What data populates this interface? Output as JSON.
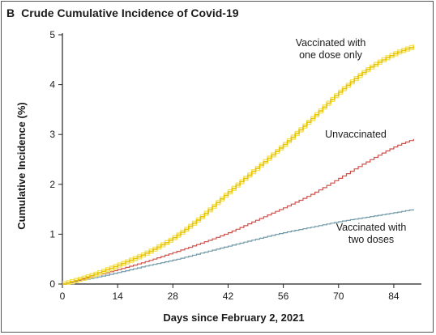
{
  "panel": {
    "letter": "B",
    "title": "Crude Cumulative Incidence of Covid-19"
  },
  "chart_data": {
    "type": "line",
    "title": "Crude Cumulative Incidence of Covid-19",
    "xlabel": "Days since February 2, 2021",
    "ylabel": "Cumulative Incidence (%)",
    "xlim": [
      0,
      91
    ],
    "ylim": [
      0,
      5
    ],
    "xticks": [
      0,
      14,
      28,
      42,
      56,
      70,
      84
    ],
    "yticks": [
      0,
      1,
      2,
      3,
      4,
      5
    ],
    "grid": false,
    "legend": "inline labels",
    "series": [
      {
        "name": "Vaccinated with one dose only",
        "label_lines": [
          "Vaccinated with",
          "one dose only"
        ],
        "color": "#e8c400",
        "band_color": "#f3e25a",
        "x": [
          0,
          7,
          14,
          21,
          28,
          35,
          42,
          49,
          56,
          63,
          70,
          77,
          84,
          89
        ],
        "values": [
          0,
          0.17,
          0.38,
          0.62,
          0.93,
          1.35,
          1.85,
          2.32,
          2.8,
          3.32,
          3.85,
          4.3,
          4.62,
          4.77
        ]
      },
      {
        "name": "Unvaccinated",
        "label_lines": [
          "Unvaccinated"
        ],
        "color": "#d0504a",
        "x": [
          0,
          7,
          14,
          21,
          28,
          35,
          42,
          49,
          56,
          63,
          70,
          77,
          84,
          89
        ],
        "values": [
          0,
          0.14,
          0.29,
          0.45,
          0.63,
          0.82,
          1.03,
          1.28,
          1.53,
          1.8,
          2.12,
          2.45,
          2.75,
          2.91
        ]
      },
      {
        "name": "Vaccinated with two doses",
        "label_lines": [
          "Vaccinated with",
          "two doses"
        ],
        "color": "#6f98a6",
        "x": [
          0,
          7,
          14,
          21,
          28,
          35,
          42,
          49,
          56,
          63,
          70,
          77,
          84,
          89
        ],
        "values": [
          0,
          0.11,
          0.23,
          0.36,
          0.48,
          0.62,
          0.76,
          0.9,
          1.03,
          1.14,
          1.25,
          1.34,
          1.43,
          1.5
        ]
      }
    ]
  }
}
